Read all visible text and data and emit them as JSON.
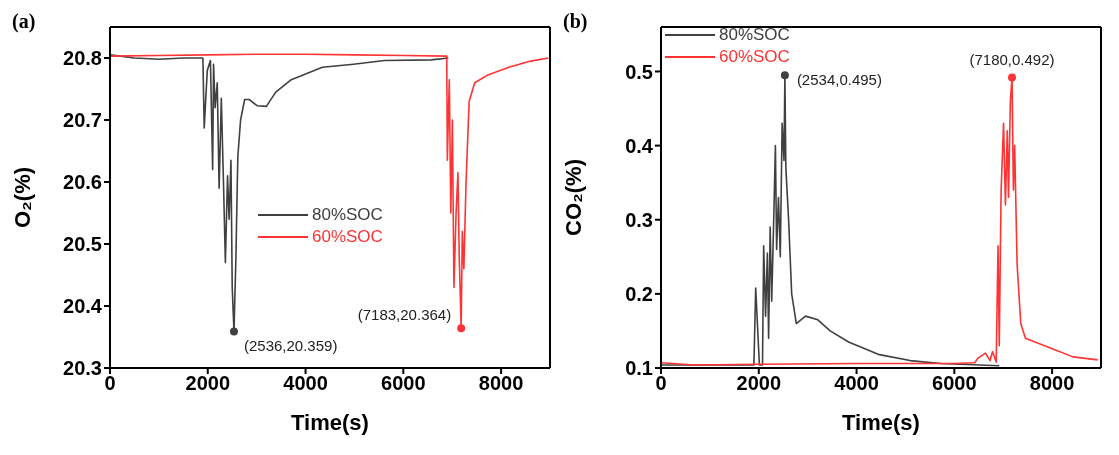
{
  "chart_data": [
    {
      "type": "line",
      "title": "(a)",
      "xlabel": "Time(s)",
      "ylabel": "O₂(%)",
      "xlim": [
        0,
        9000
      ],
      "xticks": [
        0,
        2000,
        4000,
        6000,
        8000
      ],
      "ylim": [
        20.3,
        20.85
      ],
      "yticks": [
        20.3,
        20.4,
        20.5,
        20.6,
        20.7,
        20.8
      ],
      "legend": "center",
      "marker": "none",
      "grid": false,
      "series": [
        {
          "name": "80%SOC",
          "color": "#404040",
          "x": [
            0,
            500,
            1000,
            1500,
            1900,
            1927,
            1990,
            2054,
            2100,
            2118,
            2150,
            2194,
            2232,
            2277,
            2321,
            2360,
            2404,
            2436,
            2474,
            2500,
            2536,
            2576,
            2614,
            2671,
            2754,
            2850,
            3008,
            3199,
            3390,
            3708,
            4026,
            4344,
            4980,
            5616,
            6570,
            6920
          ],
          "values": [
            20.805,
            20.8,
            20.798,
            20.8,
            20.8,
            20.687,
            20.78,
            20.796,
            20.62,
            20.79,
            20.72,
            20.76,
            20.59,
            20.735,
            20.6,
            20.47,
            20.61,
            20.54,
            20.635,
            20.43,
            20.359,
            20.48,
            20.64,
            20.7,
            20.733,
            20.733,
            20.723,
            20.722,
            20.745,
            20.765,
            20.775,
            20.785,
            20.79,
            20.796,
            20.797,
            20.8
          ]
        },
        {
          "name": "60%SOC",
          "color": "#ff3333",
          "x": [
            0,
            1000,
            2000,
            3000,
            4000,
            5000,
            6000,
            6888,
            6900,
            6940,
            6971,
            7003,
            7035,
            7079,
            7117,
            7143,
            7183,
            7206,
            7238,
            7283,
            7346,
            7460,
            7715,
            8160,
            8605,
            8968
          ],
          "values": [
            20.803,
            20.804,
            20.805,
            20.806,
            20.806,
            20.805,
            20.804,
            20.803,
            20.635,
            20.765,
            20.55,
            20.7,
            20.43,
            20.55,
            20.615,
            20.48,
            20.364,
            20.52,
            20.46,
            20.6,
            20.73,
            20.76,
            20.772,
            20.785,
            20.795,
            20.8
          ]
        }
      ],
      "annotations": [
        {
          "text": "(2536,20.359)",
          "x": 2536,
          "y": 20.359
        },
        {
          "text": "(7183,20.364)",
          "x": 7183,
          "y": 20.364
        }
      ]
    },
    {
      "type": "line",
      "title": "(b)",
      "xlabel": "Time(s)",
      "ylabel": "CO₂(%)",
      "xlim": [
        0,
        9000
      ],
      "xticks": [
        0,
        2000,
        4000,
        6000,
        8000
      ],
      "ylim": [
        0.1,
        0.56
      ],
      "yticks": [
        0.1,
        0.2,
        0.3,
        0.4,
        0.5
      ],
      "legend": "top left",
      "marker": "none",
      "grid": false,
      "series": [
        {
          "name": "80%SOC",
          "color": "#404040",
          "x": [
            0,
            1000,
            1900,
            1937,
            2013,
            2076,
            2100,
            2139,
            2176,
            2201,
            2233,
            2264,
            2302,
            2340,
            2365,
            2403,
            2440,
            2478,
            2516,
            2534,
            2554,
            2610,
            2673,
            2768,
            2956,
            3208,
            3460,
            3837,
            4466,
            5095,
            5724,
            6919
          ],
          "values": [
            0.104,
            0.104,
            0.104,
            0.208,
            0.104,
            0.104,
            0.265,
            0.17,
            0.255,
            0.14,
            0.29,
            0.19,
            0.29,
            0.4,
            0.26,
            0.33,
            0.25,
            0.43,
            0.38,
            0.495,
            0.37,
            0.3,
            0.2,
            0.16,
            0.17,
            0.165,
            0.15,
            0.135,
            0.118,
            0.11,
            0.106,
            0.103
          ]
        },
        {
          "name": "60%SOC",
          "color": "#ff3333",
          "x": [
            0,
            692,
            2000,
            4000,
            6000,
            6416,
            6479,
            6636,
            6730,
            6781,
            6856,
            6894,
            6919,
            6957,
            7007,
            7045,
            7083,
            7108,
            7146,
            7180,
            7208,
            7234,
            7284,
            7359,
            7454,
            7925,
            8428,
            8932
          ],
          "values": [
            0.107,
            0.104,
            0.105,
            0.106,
            0.106,
            0.107,
            0.113,
            0.12,
            0.11,
            0.122,
            0.108,
            0.265,
            0.13,
            0.34,
            0.43,
            0.32,
            0.42,
            0.33,
            0.46,
            0.492,
            0.34,
            0.4,
            0.24,
            0.16,
            0.14,
            0.128,
            0.115,
            0.111
          ]
        }
      ],
      "annotations": [
        {
          "text": "(2534,0.495)",
          "x": 2534,
          "y": 0.495
        },
        {
          "text": "(7180,0.492)",
          "x": 7180,
          "y": 0.492
        }
      ]
    }
  ]
}
